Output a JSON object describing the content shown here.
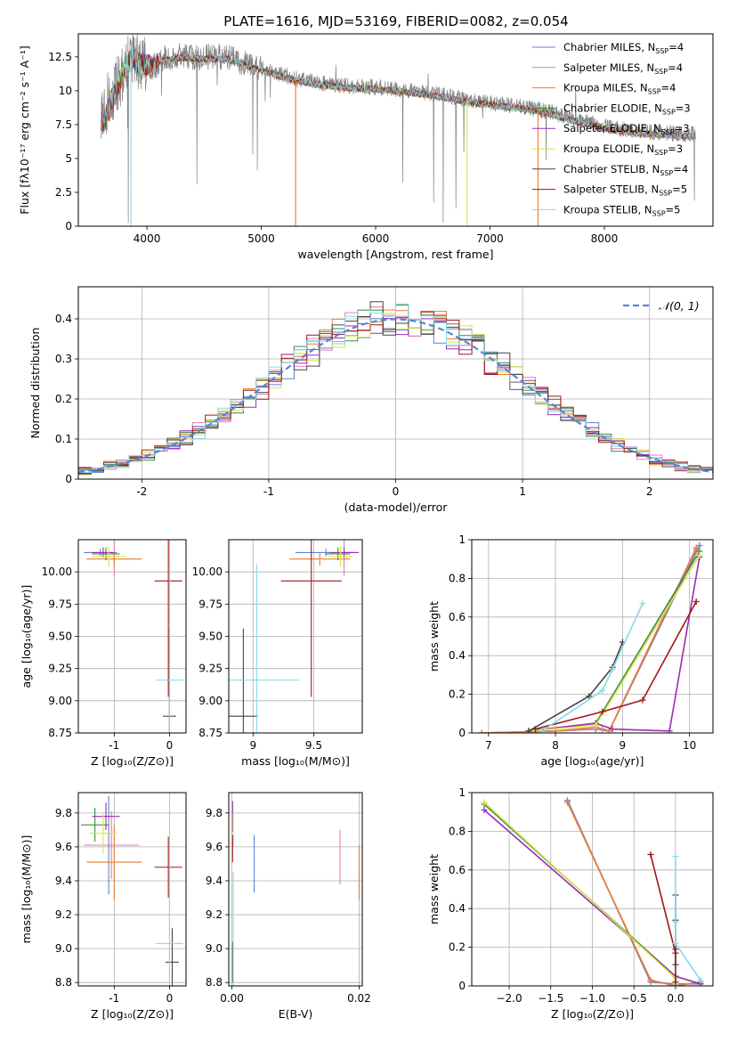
{
  "figure": {
    "title": "PLATE=1616, MJD=53169, FIBERID=0082, z=0.054"
  },
  "colors": {
    "Chabrier MILES": "#5b84d4",
    "Salpeter MILES": "#e07fb3",
    "Kroupa MILES": "#e87c2c",
    "Chabrier ELODIE": "#3c8c3c",
    "Salpeter ELODIE": "#9b2bb3",
    "Kroupa ELODIE": "#d7e64a",
    "Chabrier STELIB": "#444444",
    "Salpeter STELIB": "#a31616",
    "Kroupa STELIB": "#84dbe6",
    "data": "#808080",
    "normal": "#5b84d4"
  },
  "chart_data": [
    {
      "id": "spectrum",
      "type": "line",
      "xlabel": "wavelength [Angstrom, rest frame]",
      "ylabel": "Flux [fλ10⁻¹⁷ erg cm⁻² s⁻¹ A⁻¹]",
      "xlim": [
        3400,
        8950
      ],
      "ylim": [
        0,
        14.2
      ],
      "xticks": [
        4000,
        5000,
        6000,
        7000,
        8000
      ],
      "yticks": [
        0.0,
        2.5,
        5.0,
        7.5,
        10.0,
        12.5
      ],
      "grid": false,
      "legend_position": "top-right",
      "legend": [
        {
          "label": "Chabrier MILES, N",
          "sub": "SSP",
          "tail": "=4",
          "series": "Chabrier MILES"
        },
        {
          "label": "Salpeter MILES, N",
          "sub": "SSP",
          "tail": "=4",
          "series": "Salpeter MILES"
        },
        {
          "label": "Kroupa MILES, N",
          "sub": "SSP",
          "tail": "=4",
          "series": "Kroupa MILES"
        },
        {
          "label": "Chabrier ELODIE, N",
          "sub": "SSP",
          "tail": "=3",
          "series": "Chabrier ELODIE"
        },
        {
          "label": "Salpeter ELODIE, N",
          "sub": "SSP",
          "tail": "=3",
          "series": "Salpeter ELODIE"
        },
        {
          "label": "Kroupa ELODIE, N",
          "sub": "SSP",
          "tail": "=3",
          "series": "Kroupa ELODIE"
        },
        {
          "label": "Chabrier STELIB, N",
          "sub": "SSP",
          "tail": "=4",
          "series": "Chabrier STELIB"
        },
        {
          "label": "Salpeter STELIB, N",
          "sub": "SSP",
          "tail": "=5",
          "series": "Salpeter STELIB"
        },
        {
          "label": "Kroupa STELIB, N",
          "sub": "SSP",
          "tail": "=5",
          "series": "Kroupa STELIB"
        }
      ],
      "continuum": {
        "x": [
          3600,
          3640,
          3700,
          3760,
          3820,
          3880,
          3920,
          3980,
          4050,
          4150,
          4300,
          4500,
          4700,
          4900,
          5100,
          5300,
          5500,
          5700,
          5900,
          6100,
          6300,
          6500,
          6700,
          6900,
          7100,
          7300,
          7500,
          7700,
          7900,
          8100,
          8300,
          8500,
          8700,
          8800
        ],
        "y": [
          7.6,
          8.2,
          9.6,
          10.8,
          12.1,
          12.6,
          12.2,
          12.1,
          11.8,
          12.4,
          12.6,
          12.5,
          12.5,
          11.9,
          11.4,
          10.9,
          10.6,
          10.4,
          10.3,
          10.2,
          10.0,
          9.8,
          9.5,
          9.2,
          9.0,
          8.8,
          8.5,
          8.0,
          7.6,
          7.2,
          7.0,
          6.9,
          6.8,
          6.8
        ]
      },
      "model_dips": [
        {
          "x": 5300,
          "y": 0.0,
          "series": "Kroupa MILES"
        },
        {
          "x": 6800,
          "y": 0.0,
          "series": "Kroupa ELODIE"
        },
        {
          "x": 7420,
          "y": 0.0,
          "series": "Kroupa MILES"
        },
        {
          "x": 3860,
          "y": 0.0,
          "series": "Kroupa STELIB"
        }
      ]
    },
    {
      "id": "residuals",
      "type": "bar",
      "xlabel": "(data-model)/error",
      "ylabel": "Normed distribution",
      "xlim": [
        -2.5,
        2.5
      ],
      "ylim": [
        0,
        0.48
      ],
      "xticks": [
        -2,
        -1,
        0,
        1,
        2
      ],
      "yticks": [
        0.0,
        0.1,
        0.2,
        0.3,
        0.4
      ],
      "grid": true,
      "legend_position": "top-right",
      "normal_label": "𝒩(0, 1)",
      "bin_width": 0.1
    },
    {
      "id": "age-vs-z",
      "type": "scatter",
      "xlabel": "Z [log₁₀(Z/Z⊙)]",
      "ylabel": "age  [log₁₀(age/yr)]",
      "xlim": [
        -1.65,
        0.3
      ],
      "ylim": [
        8.75,
        10.25
      ],
      "xticks": [
        -1,
        0
      ],
      "yticks": [
        8.75,
        9.0,
        9.25,
        9.5,
        9.75,
        10.0
      ],
      "ytick_labels": [
        "8.75",
        "9.00",
        "9.25",
        "9.50",
        "9.75",
        "10.00"
      ],
      "grid": true,
      "points": [
        {
          "series": "Chabrier MILES",
          "x": -1.25,
          "y": 10.15,
          "xerr": 0.3,
          "yerr": 0.03
        },
        {
          "series": "Salpeter MILES",
          "x": -1.0,
          "y": 10.12,
          "xerr": 0.1,
          "yerr": 0.15
        },
        {
          "series": "Kroupa MILES",
          "x": -1.0,
          "y": 10.1,
          "xerr": 0.5,
          "yerr": 0.05
        },
        {
          "series": "Chabrier ELODIE",
          "x": -1.15,
          "y": 10.14,
          "xerr": 0.25,
          "yerr": 0.05
        },
        {
          "series": "Salpeter ELODIE",
          "x": -1.2,
          "y": 10.15,
          "xerr": 0.2,
          "yerr": 0.04
        },
        {
          "series": "Kroupa ELODIE",
          "x": -1.1,
          "y": 10.12,
          "xerr": 0.3,
          "yerr": 0.08
        },
        {
          "series": "Chabrier STELIB",
          "x": 0.0,
          "y": 8.88,
          "xerr": 0.12,
          "yerr": 0.68
        },
        {
          "series": "Salpeter STELIB",
          "x": -0.02,
          "y": 9.93,
          "xerr": 0.25,
          "yerr": 0.9
        },
        {
          "series": "Kroupa STELIB",
          "x": 0.0,
          "y": 9.16,
          "xerr": 0.25,
          "yerr": 0.9
        }
      ]
    },
    {
      "id": "age-vs-mass",
      "type": "scatter",
      "xlabel": "mass [log₁₀(M/M⊙)]",
      "ylabel": "",
      "xlim": [
        8.8,
        9.9
      ],
      "ylim": [
        8.75,
        10.25
      ],
      "xticks": [
        9.0,
        9.5
      ],
      "yticks": [
        8.75,
        9.0,
        9.25,
        9.5,
        9.75,
        10.0
      ],
      "ytick_labels": [
        "8.75",
        "9.00",
        "9.25",
        "9.50",
        "9.75",
        "10.00"
      ],
      "grid": true,
      "points": [
        {
          "series": "Chabrier MILES",
          "x": 9.6,
          "y": 10.15,
          "xerr": 0.25,
          "yerr": 0.03
        },
        {
          "series": "Salpeter MILES",
          "x": 9.75,
          "y": 10.12,
          "xerr": 0.05,
          "yerr": 0.15
        },
        {
          "series": "Kroupa MILES",
          "x": 9.55,
          "y": 10.1,
          "xerr": 0.25,
          "yerr": 0.05
        },
        {
          "series": "Chabrier ELODIE",
          "x": 9.7,
          "y": 10.14,
          "xerr": 0.1,
          "yerr": 0.05
        },
        {
          "series": "Salpeter ELODIE",
          "x": 9.75,
          "y": 10.15,
          "xerr": 0.12,
          "yerr": 0.04
        },
        {
          "series": "Kroupa ELODIE",
          "x": 9.72,
          "y": 10.12,
          "xerr": 0.1,
          "yerr": 0.08
        },
        {
          "series": "Chabrier STELIB",
          "x": 8.92,
          "y": 8.88,
          "xerr": 0.12,
          "yerr": 0.68
        },
        {
          "series": "Salpeter STELIB",
          "x": 9.48,
          "y": 9.93,
          "xerr": 0.25,
          "yerr": 0.9
        },
        {
          "series": "Kroupa STELIB",
          "x": 9.03,
          "y": 9.16,
          "xerr": 0.35,
          "yerr": 0.9
        }
      ]
    },
    {
      "id": "mass-weight-vs-age",
      "type": "line",
      "xlabel": "age  [log₁₀(age/yr)]",
      "ylabel": "mass weight",
      "xlim": [
        6.75,
        10.35
      ],
      "ylim": [
        0,
        1
      ],
      "xticks": [
        7,
        8,
        9,
        10
      ],
      "yticks": [
        0.0,
        0.2,
        0.4,
        0.6,
        0.8,
        1.0
      ],
      "grid": true,
      "series": [
        {
          "name": "Chabrier MILES",
          "x": [
            6.9,
            8.0,
            8.6,
            8.8,
            10.15
          ],
          "y": [
            0.0,
            0.01,
            0.02,
            0.01,
            0.97
          ]
        },
        {
          "name": "Salpeter MILES",
          "x": [
            6.9,
            8.0,
            8.7,
            8.8,
            10.1
          ],
          "y": [
            0.0,
            0.01,
            0.02,
            0.01,
            0.96
          ]
        },
        {
          "name": "Kroupa MILES",
          "x": [
            6.9,
            8.0,
            8.6,
            8.8,
            10.1
          ],
          "y": [
            0.0,
            0.01,
            0.03,
            0.01,
            0.95
          ]
        },
        {
          "name": "Chabrier ELODIE",
          "x": [
            7.6,
            8.6,
            10.15
          ],
          "y": [
            0.01,
            0.05,
            0.94
          ]
        },
        {
          "name": "Salpeter ELODIE",
          "x": [
            7.6,
            8.6,
            8.85,
            9.7,
            10.15
          ],
          "y": [
            0.01,
            0.05,
            0.02,
            0.01,
            0.91
          ]
        },
        {
          "name": "Kroupa ELODIE",
          "x": [
            7.6,
            8.6,
            10.15
          ],
          "y": [
            0.01,
            0.04,
            0.92
          ]
        },
        {
          "name": "Chabrier STELIB",
          "x": [
            7.6,
            8.5,
            8.85,
            9.0
          ],
          "y": [
            0.01,
            0.19,
            0.34,
            0.47
          ]
        },
        {
          "name": "Salpeter STELIB",
          "x": [
            7.7,
            8.7,
            9.3,
            10.1
          ],
          "y": [
            0.02,
            0.11,
            0.17,
            0.68
          ]
        },
        {
          "name": "Kroupa STELIB",
          "x": [
            7.8,
            8.7,
            8.85,
            9.3
          ],
          "y": [
            0.01,
            0.22,
            0.33,
            0.67
          ]
        }
      ]
    },
    {
      "id": "mass-vs-z",
      "type": "scatter",
      "xlabel": "Z [log₁₀(Z/Z⊙)]",
      "ylabel": "mass [log₁₀(M/M⊙)]",
      "xlim": [
        -1.65,
        0.3
      ],
      "ylim": [
        8.78,
        9.92
      ],
      "xticks": [
        -1,
        0
      ],
      "yticks": [
        8.8,
        9.0,
        9.2,
        9.4,
        9.6,
        9.8
      ],
      "ytick_labels": [
        "8.8",
        "9.0",
        "9.2",
        "9.4",
        "9.6",
        "9.8"
      ],
      "grid": true,
      "points": [
        {
          "series": "Chabrier MILES",
          "x": -1.1,
          "y": 9.61,
          "xerr": 0.25,
          "yerr": 0.29
        },
        {
          "series": "Salpeter MILES",
          "x": -1.05,
          "y": 9.61,
          "xerr": 0.5,
          "yerr": 0.2
        },
        {
          "series": "Kroupa MILES",
          "x": -1.0,
          "y": 9.51,
          "xerr": 0.5,
          "yerr": 0.22
        },
        {
          "series": "Chabrier ELODIE",
          "x": -1.35,
          "y": 9.73,
          "xerr": 0.25,
          "yerr": 0.1
        },
        {
          "series": "Salpeter ELODIE",
          "x": -1.15,
          "y": 9.78,
          "xerr": 0.25,
          "yerr": 0.08
        },
        {
          "series": "Kroupa ELODIE",
          "x": -1.2,
          "y": 9.68,
          "xerr": 0.25,
          "yerr": 0.12
        },
        {
          "series": "Chabrier STELIB",
          "x": 0.05,
          "y": 8.92,
          "xerr": 0.12,
          "yerr": 0.2
        },
        {
          "series": "Salpeter STELIB",
          "x": -0.02,
          "y": 9.48,
          "xerr": 0.25,
          "yerr": 0.18
        },
        {
          "series": "Kroupa STELIB",
          "x": 0.0,
          "y": 9.03,
          "xerr": 0.25,
          "yerr": 0.5
        }
      ]
    },
    {
      "id": "mass-vs-ebv",
      "type": "scatter",
      "xlabel": "E(B-V)",
      "ylabel": "",
      "xlim": [
        -0.0005,
        0.0205
      ],
      "ylim": [
        8.78,
        9.92
      ],
      "xticks": [
        0.0,
        0.02
      ],
      "xtick_labels": [
        "0.00",
        "0.02"
      ],
      "yticks": [
        8.8,
        9.0,
        9.2,
        9.4,
        9.6,
        9.8
      ],
      "ytick_labels": [
        "8.8",
        "9.0",
        "9.2",
        "9.4",
        "9.6",
        "9.8"
      ],
      "grid": true,
      "points": [
        {
          "series": "Chabrier MILES",
          "x": 0.0035,
          "y": 9.5,
          "xerr": 0,
          "yerr": 0.17
        },
        {
          "series": "Salpeter MILES",
          "x": 0.017,
          "y": 9.54,
          "xerr": 0,
          "yerr": 0.16
        },
        {
          "series": "Kroupa MILES",
          "x": 0.02,
          "y": 9.45,
          "xerr": 0,
          "yerr": 0.16
        },
        {
          "series": "Salpeter ELODIE",
          "x": 0.0001,
          "y": 9.78,
          "xerr": 0,
          "yerr": 0.09
        },
        {
          "series": "Kroupa ELODIE",
          "x": 0.0002,
          "y": 9.7,
          "xerr": 0,
          "yerr": 0.1
        },
        {
          "series": "Chabrier STELIB",
          "x": 0.0001,
          "y": 8.92,
          "xerr": 0,
          "yerr": 0.12
        },
        {
          "series": "Salpeter STELIB",
          "x": 0.0001,
          "y": 9.59,
          "xerr": 0,
          "yerr": 0.08
        },
        {
          "series": "Kroupa STELIB",
          "x": 0.0002,
          "y": 9.05,
          "xerr": 0,
          "yerr": 0.4
        }
      ]
    },
    {
      "id": "mass-weight-vs-z",
      "type": "line",
      "xlabel": "Z [log₁₀(Z/Z⊙)]",
      "ylabel": "mass weight",
      "xlim": [
        -2.45,
        0.45
      ],
      "ylim": [
        0,
        1
      ],
      "xticks": [
        -2.0,
        -1.5,
        -1.0,
        -0.5,
        0.0
      ],
      "xtick_labels": [
        "−2.0",
        "−1.5",
        "−1.0",
        "−0.5",
        "0.0"
      ],
      "yticks": [
        0.0,
        0.2,
        0.4,
        0.6,
        0.8,
        1.0
      ],
      "grid": true,
      "series": [
        {
          "name": "Chabrier MILES",
          "x": [
            -1.3,
            -0.3,
            0.0,
            0.3
          ],
          "y": [
            0.96,
            0.02,
            0.01,
            0.01
          ]
        },
        {
          "name": "Salpeter MILES",
          "x": [
            -1.3,
            -0.3,
            0.0,
            0.3
          ],
          "y": [
            0.95,
            0.03,
            0.0,
            0.02
          ]
        },
        {
          "name": "Kroupa MILES",
          "x": [
            -1.3,
            -0.3,
            0.0,
            0.3
          ],
          "y": [
            0.95,
            0.03,
            0.0,
            0.02
          ]
        },
        {
          "name": "Chabrier ELODIE",
          "x": [
            -2.3,
            0.0,
            0.0
          ],
          "y": [
            0.94,
            0.05,
            0.01
          ]
        },
        {
          "name": "Salpeter ELODIE",
          "x": [
            -2.3,
            0.0,
            0.3
          ],
          "y": [
            0.91,
            0.05,
            0.01
          ]
        },
        {
          "name": "Kroupa ELODIE",
          "x": [
            -2.3,
            0.0,
            0.0
          ],
          "y": [
            0.95,
            0.04,
            0.01
          ]
        },
        {
          "name": "Chabrier STELIB",
          "x": [
            0.0,
            0.0,
            0.0,
            0.0
          ],
          "y": [
            0.47,
            0.34,
            0.19,
            0.11
          ]
        },
        {
          "name": "Salpeter STELIB",
          "x": [
            -0.3,
            0.0,
            0.0
          ],
          "y": [
            0.68,
            0.17,
            0.02
          ]
        },
        {
          "name": "Kroupa STELIB",
          "x": [
            0.0,
            0.0,
            0.0,
            0.3
          ],
          "y": [
            0.67,
            0.33,
            0.22,
            0.03
          ]
        }
      ]
    }
  ]
}
